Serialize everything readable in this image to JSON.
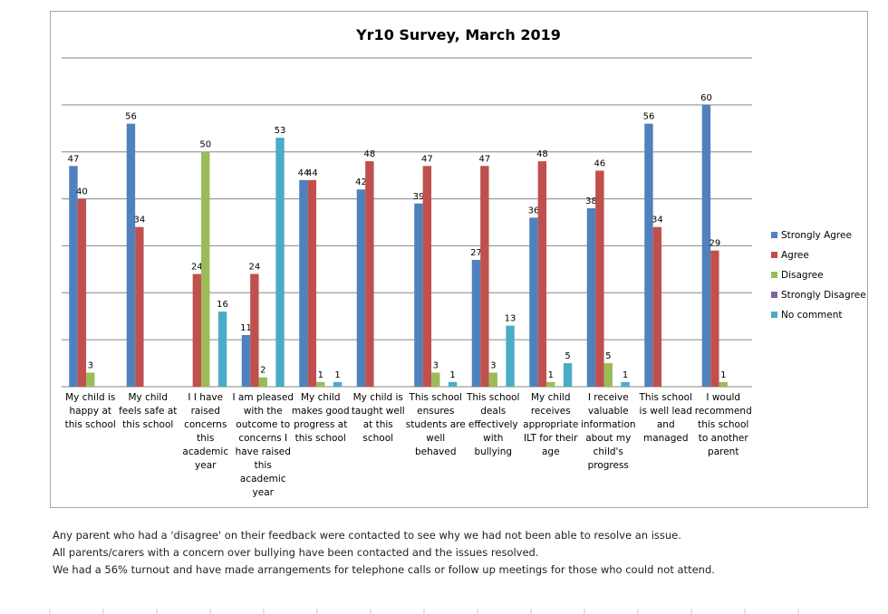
{
  "chart_data": {
    "type": "bar",
    "title": "Yr10 Survey, March 2019",
    "ylim": [
      0,
      70
    ],
    "grid": true,
    "legend_position": "right",
    "categories": [
      "My child is happy at this school",
      "My child feels safe at this school",
      "I I have raised concerns this academic year",
      "I am pleased with the outcome to concerns I have raised this academic year",
      "My child makes good progress at this school",
      "My child is taught well at this school",
      "This school ensures students are well behaved",
      "This school deals effectively with bullying",
      "My child receives appropriate ILT for their age",
      "I receive valuable information about my child's progress",
      "This school is well lead and managed",
      "I would recommend this school to another parent"
    ],
    "category_lines": [
      [
        "My child is",
        "happy at",
        "this school"
      ],
      [
        "My child",
        "feels safe at",
        "this school"
      ],
      [
        "I I have",
        "raised",
        "concerns",
        "this",
        "academic",
        "year"
      ],
      [
        "I am pleased",
        "with the",
        "outcome to",
        "concerns I",
        "have raised",
        "this",
        "academic",
        "year"
      ],
      [
        "My child",
        "makes good",
        "progress at",
        "this school"
      ],
      [
        "My child is",
        "taught well",
        "at this",
        "school"
      ],
      [
        "This school",
        "ensures",
        "students are",
        "well",
        "behaved"
      ],
      [
        "This school",
        "deals",
        "effectively",
        "with",
        "bullying"
      ],
      [
        "My child",
        "receives",
        "appropriate",
        "ILT for their",
        "age"
      ],
      [
        "I receive",
        "valuable",
        "information",
        "about my",
        "child's",
        "progress"
      ],
      [
        "This school",
        "is well lead",
        "and",
        "managed"
      ],
      [
        "I would",
        "recommend",
        "this school",
        "to another",
        "parent"
      ]
    ],
    "series": [
      {
        "name": "Strongly Agree",
        "color": "#4f81bd",
        "values": [
          47,
          56,
          null,
          11,
          44,
          42,
          39,
          27,
          36,
          38,
          56,
          60
        ]
      },
      {
        "name": "Agree",
        "color": "#c0504d",
        "values": [
          40,
          34,
          24,
          24,
          44,
          48,
          47,
          47,
          48,
          46,
          34,
          29
        ]
      },
      {
        "name": "Disagree",
        "color": "#9bbb59",
        "values": [
          3,
          null,
          50,
          2,
          1,
          null,
          3,
          3,
          1,
          5,
          null,
          1
        ]
      },
      {
        "name": "Strongly Disagree",
        "color": "#8064a2",
        "values": [
          null,
          null,
          null,
          null,
          null,
          null,
          null,
          null,
          null,
          null,
          null,
          null
        ]
      },
      {
        "name": "No comment",
        "color": "#4bacc6",
        "values": [
          null,
          null,
          16,
          53,
          1,
          null,
          1,
          13,
          5,
          1,
          null,
          null
        ]
      }
    ]
  },
  "notes": [
    "Any parent who had a 'disagree' on their feedback were contacted to see why we had not been able to resolve an issue.",
    "All parents/carers with a concern over bullying have been contacted and the issues resolved.",
    "We had a 56% turnout and have made arrangements for telephone calls or follow up meetings for those who could not attend."
  ]
}
